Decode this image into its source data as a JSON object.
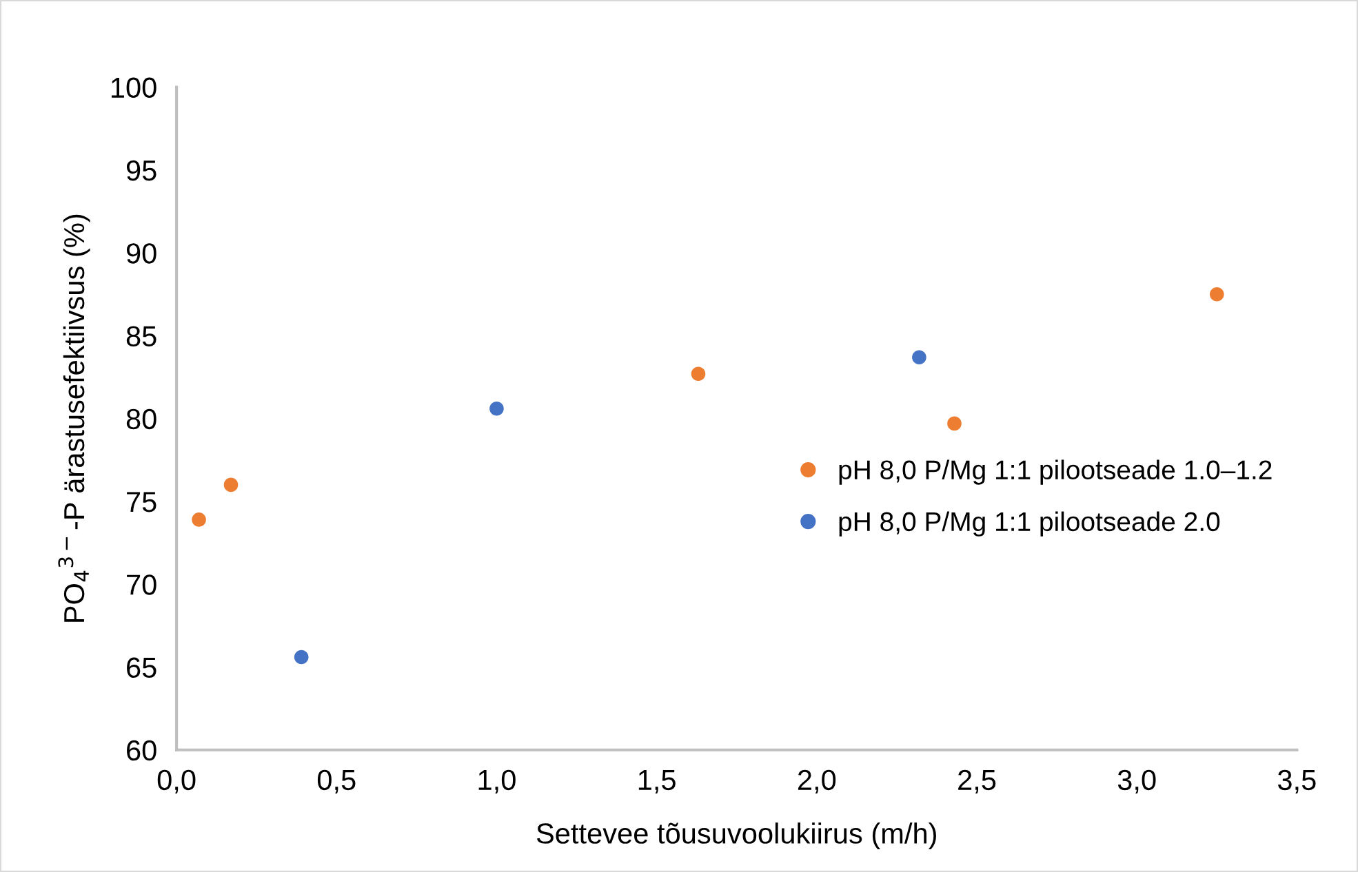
{
  "chart_data": {
    "type": "scatter",
    "xlabel": "Settevee tõusuvoolukiirus (m/h)",
    "ylabel": "PO$_{4}$$^{3−}$-P ärastusefektiivsus (%)",
    "series": [
      {
        "name": "pH 8,0 P/Mg 1:1 pilootseade 1.0–1.2",
        "color": "#ed7d31",
        "x": [
          0.07,
          0.17,
          1.63,
          2.43,
          3.25
        ],
        "values": [
          73.9,
          76.0,
          82.7,
          79.7,
          87.5
        ]
      },
      {
        "name": "pH 8,0 P/Mg 1:1 pilootseade 2.0",
        "color": "#4472c4",
        "x": [
          0.39,
          1.0,
          2.32
        ],
        "values": [
          65.6,
          80.6,
          83.7
        ]
      }
    ],
    "xlim": [
      0,
      3.5
    ],
    "ylim": [
      60,
      100
    ],
    "xticks": [
      {
        "value": 0,
        "label": "0,0"
      },
      {
        "value": 0.5,
        "label": "0,5"
      },
      {
        "value": 1,
        "label": "1,0"
      },
      {
        "value": 1.5,
        "label": "1,5"
      },
      {
        "value": 2,
        "label": "2,0"
      },
      {
        "value": 2.5,
        "label": "2,5"
      },
      {
        "value": 3,
        "label": "3,0"
      },
      {
        "value": 3.5,
        "label": "3,5"
      }
    ],
    "yticks": [
      60,
      65,
      70,
      75,
      80,
      85,
      90,
      95,
      100
    ],
    "grid": false,
    "legend": "right",
    "marker": "circle"
  }
}
